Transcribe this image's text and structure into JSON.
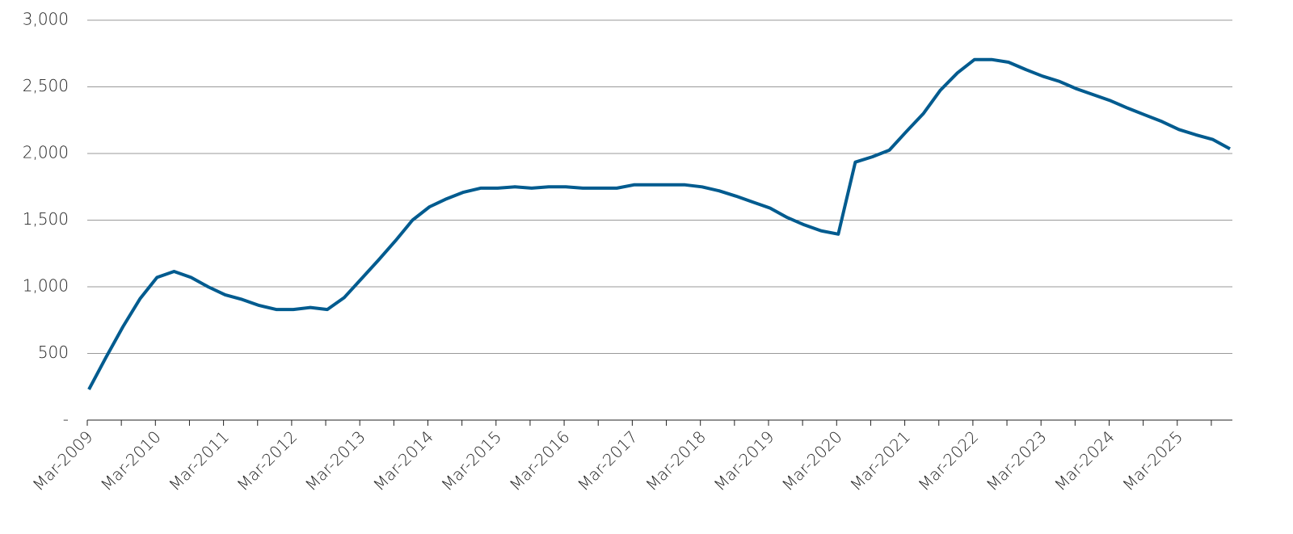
{
  "chart_data": {
    "type": "line",
    "categories": [
      "Mar-2009",
      null,
      null,
      null,
      "Mar-2010",
      null,
      null,
      null,
      "Mar-2011",
      null,
      null,
      null,
      "Mar-2012",
      null,
      null,
      null,
      "Mar-2013",
      null,
      null,
      null,
      "Mar-2014",
      null,
      null,
      null,
      "Mar-2015",
      null,
      null,
      null,
      "Mar-2016",
      null,
      null,
      null,
      "Mar-2017",
      null,
      null,
      null,
      "Mar-2018",
      null,
      null,
      null,
      "Mar-2019",
      null,
      null,
      null,
      "Mar-2020",
      null,
      null,
      null,
      "Mar-2021",
      null,
      null,
      null,
      "Mar-2022",
      null,
      null,
      null,
      "Mar-2023",
      null,
      null,
      null,
      "Mar-2024",
      null,
      null,
      null,
      "Mar-2025",
      null,
      null,
      null
    ],
    "values": [
      230,
      470,
      700,
      910,
      1070,
      1115,
      1070,
      1000,
      940,
      905,
      860,
      830,
      830,
      845,
      830,
      920,
      1060,
      1200,
      1345,
      1500,
      1600,
      1660,
      1710,
      1740,
      1740,
      1750,
      1740,
      1750,
      1750,
      1740,
      1740,
      1740,
      1765,
      1765,
      1765,
      1765,
      1750,
      1720,
      1680,
      1635,
      1590,
      1520,
      1465,
      1420,
      1395,
      1935,
      1975,
      2025,
      2165,
      2300,
      2475,
      2605,
      2705,
      2705,
      2685,
      2630,
      2580,
      2540,
      2485,
      2440,
      2395,
      2340,
      2290,
      2240,
      2180,
      2140,
      2105,
      2035
    ],
    "color": "#005b8f",
    "ylim": [
      0,
      3000
    ],
    "yticks": [
      {
        "value": 0,
        "label": "-"
      },
      500,
      {
        "value": 1000,
        "label": "1,000"
      },
      {
        "value": 1500,
        "label": "1,500"
      },
      {
        "value": 2000,
        "label": "2,000"
      },
      {
        "value": 2500,
        "label": "2,500"
      },
      {
        "value": 3000,
        "label": "3,000"
      }
    ],
    "grid": true
  }
}
